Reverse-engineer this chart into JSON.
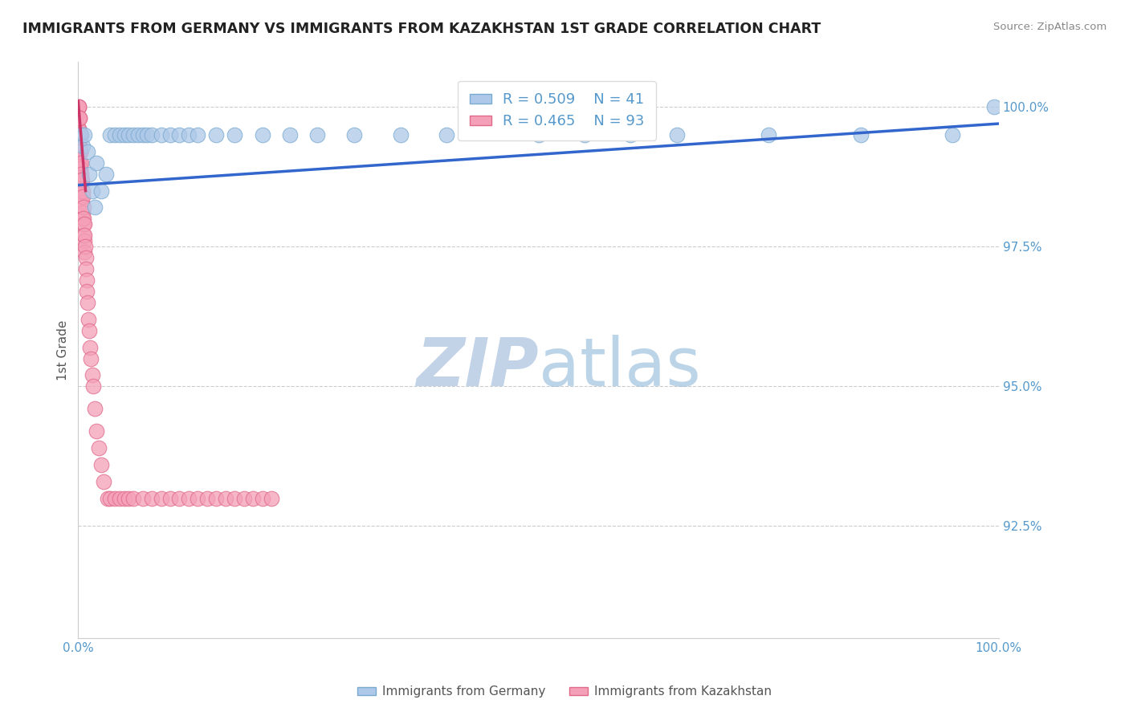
{
  "title": "IMMIGRANTS FROM GERMANY VS IMMIGRANTS FROM KAZAKHSTAN 1ST GRADE CORRELATION CHART",
  "source": "Source: ZipAtlas.com",
  "ylabel": "1st Grade",
  "ytick_labels": [
    "92.5%",
    "95.0%",
    "97.5%",
    "100.0%"
  ],
  "ytick_values": [
    92.5,
    95.0,
    97.5,
    100.0
  ],
  "legend_blue_label": "Immigrants from Germany",
  "legend_pink_label": "Immigrants from Kazakhstan",
  "R_blue": 0.509,
  "N_blue": 41,
  "R_pink": 0.465,
  "N_pink": 93,
  "blue_color": "#adc8e8",
  "blue_edge_color": "#7aaad0",
  "pink_color": "#f4a0b8",
  "pink_edge_color": "#e06888",
  "blue_line_color": "#3366cc",
  "pink_line_color": "#cc3366",
  "title_color": "#222222",
  "axis_label_color": "#5599cc",
  "grid_color": "#cccccc",
  "watermark_color": "#d0dff0",
  "blue_x": [
    0.3,
    0.5,
    0.7,
    1.0,
    1.2,
    1.5,
    1.8,
    2.0,
    2.5,
    3.0,
    3.5,
    4.0,
    4.5,
    5.0,
    5.5,
    6.0,
    6.5,
    7.0,
    7.5,
    8.0,
    9.0,
    10.0,
    11.0,
    12.0,
    13.0,
    15.0,
    17.0,
    20.0,
    23.0,
    26.0,
    30.0,
    35.0,
    40.0,
    50.0,
    55.0,
    60.0,
    65.0,
    75.0,
    85.0,
    95.0,
    99.5
  ],
  "blue_y": [
    99.5,
    99.3,
    99.5,
    99.2,
    98.8,
    98.5,
    98.2,
    99.0,
    98.5,
    98.8,
    99.5,
    99.5,
    99.5,
    99.5,
    99.5,
    99.5,
    99.5,
    99.5,
    99.5,
    99.5,
    99.5,
    99.5,
    99.5,
    99.5,
    99.5,
    99.5,
    99.5,
    99.5,
    99.5,
    99.5,
    99.5,
    99.5,
    99.5,
    99.5,
    99.5,
    99.5,
    99.5,
    99.5,
    99.5,
    99.5,
    100.0
  ],
  "pink_x": [
    0.05,
    0.05,
    0.05,
    0.05,
    0.05,
    0.08,
    0.08,
    0.08,
    0.08,
    0.08,
    0.1,
    0.1,
    0.1,
    0.1,
    0.1,
    0.1,
    0.12,
    0.12,
    0.12,
    0.12,
    0.15,
    0.15,
    0.15,
    0.15,
    0.15,
    0.18,
    0.18,
    0.18,
    0.2,
    0.2,
    0.2,
    0.2,
    0.25,
    0.25,
    0.25,
    0.3,
    0.3,
    0.3,
    0.35,
    0.35,
    0.4,
    0.4,
    0.45,
    0.45,
    0.5,
    0.5,
    0.55,
    0.55,
    0.6,
    0.6,
    0.65,
    0.65,
    0.7,
    0.7,
    0.75,
    0.8,
    0.85,
    0.9,
    0.95,
    1.0,
    1.1,
    1.2,
    1.3,
    1.4,
    1.5,
    1.6,
    1.8,
    2.0,
    2.2,
    2.5,
    2.8,
    3.2,
    3.5,
    4.0,
    4.5,
    5.0,
    5.5,
    6.0,
    7.0,
    8.0,
    9.0,
    10.0,
    11.0,
    12.0,
    13.0,
    14.0,
    15.0,
    16.0,
    17.0,
    18.0,
    19.0,
    20.0,
    21.0
  ],
  "pink_y": [
    100.0,
    99.8,
    99.6,
    99.4,
    99.2,
    100.0,
    99.8,
    99.6,
    99.4,
    99.2,
    100.0,
    99.8,
    99.6,
    99.4,
    99.2,
    99.0,
    99.8,
    99.5,
    99.3,
    99.0,
    99.8,
    99.5,
    99.3,
    99.0,
    98.7,
    99.5,
    99.2,
    99.0,
    99.5,
    99.2,
    98.9,
    98.6,
    99.2,
    98.9,
    98.6,
    99.0,
    98.7,
    98.4,
    98.8,
    98.5,
    98.7,
    98.3,
    98.5,
    98.1,
    98.4,
    98.0,
    98.2,
    97.9,
    98.0,
    97.7,
    97.9,
    97.6,
    97.7,
    97.4,
    97.5,
    97.3,
    97.1,
    96.9,
    96.7,
    96.5,
    96.2,
    96.0,
    95.7,
    95.5,
    95.2,
    95.0,
    94.6,
    94.2,
    93.9,
    93.6,
    93.3,
    93.0,
    93.0,
    93.0,
    93.0,
    93.0,
    93.0,
    93.0,
    93.0,
    93.0,
    93.0,
    93.0,
    93.0,
    93.0,
    93.0,
    93.0,
    93.0,
    93.0,
    93.0,
    93.0,
    93.0,
    93.0,
    93.0
  ],
  "blue_trend_x": [
    0.0,
    100.0
  ],
  "blue_trend_y": [
    98.6,
    99.7
  ],
  "pink_trend_x": [
    0.0,
    0.8
  ],
  "pink_trend_y": [
    100.1,
    98.5
  ],
  "xmin": 0.0,
  "xmax": 100.0,
  "ymin": 90.5,
  "ymax": 100.8
}
